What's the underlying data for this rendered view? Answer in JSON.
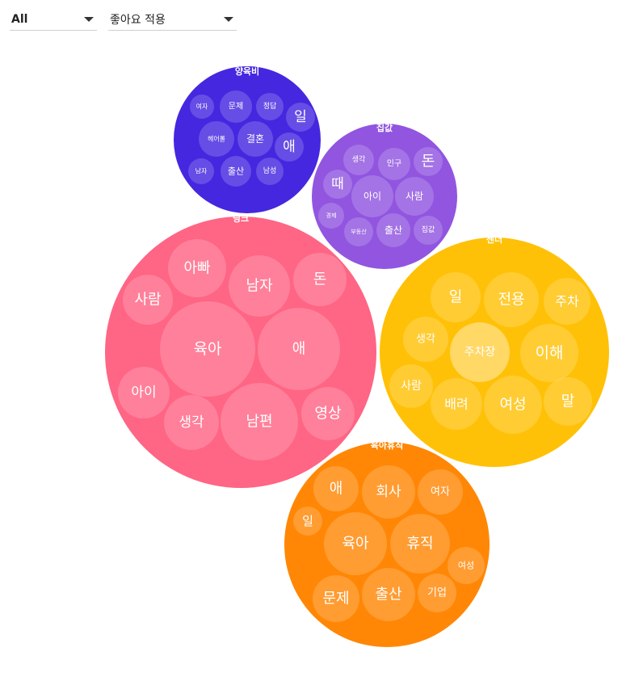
{
  "filters": {
    "category_select": {
      "value": "All"
    },
    "like_select": {
      "value": "좋아요 적용"
    }
  },
  "chart_data": {
    "type": "bubble-pack",
    "groups": [
      {
        "name": "양육비",
        "color": "#4527E0",
        "words": [
          "여자",
          "문제",
          "정답",
          "일",
          "헤어롤",
          "결혼",
          "애",
          "남자",
          "출산",
          "남성"
        ]
      },
      {
        "name": "집값",
        "color": "#9155E0",
        "words": [
          "생각",
          "인구",
          "돈",
          "때",
          "아이",
          "사람",
          "경제",
          "부동산",
          "출산",
          "집값"
        ]
      },
      {
        "name": "딩크",
        "color": "#FF6584",
        "words": [
          "아빠",
          "남자",
          "돈",
          "사람",
          "육아",
          "애",
          "아이",
          "생각",
          "남편",
          "영상"
        ]
      },
      {
        "name": "젠더",
        "color": "#FFC107",
        "words": [
          "일",
          "전용",
          "주차",
          "생각",
          "주차장",
          "이해",
          "사람",
          "배려",
          "여성",
          "말"
        ]
      },
      {
        "name": "육아휴직",
        "color": "#FF8705",
        "words": [
          "애",
          "회사",
          "여자",
          "일",
          "육아",
          "휴직",
          "여성",
          "문제",
          "출산",
          "기업"
        ]
      }
    ]
  }
}
